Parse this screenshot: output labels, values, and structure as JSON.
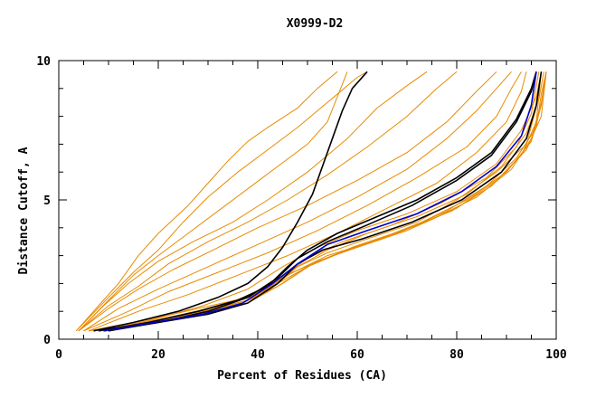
{
  "chart_data": {
    "type": "line",
    "title": "X0999-D2",
    "xlabel": "Percent of Residues (CA)",
    "ylabel": "Distance Cutoff, A",
    "xlim": [
      0,
      100
    ],
    "ylim": [
      0,
      10
    ],
    "xticks": [
      0,
      20,
      40,
      60,
      80,
      100
    ],
    "yticks": [
      0,
      5,
      10
    ],
    "grid": false,
    "colors": {
      "orange": "#e88a00",
      "black": "#000000",
      "blue": "#0000cc"
    },
    "series": [
      {
        "color": "orange",
        "points": [
          [
            3.5,
            0.3
          ],
          [
            8,
            1.2
          ],
          [
            12,
            2.0
          ],
          [
            16,
            3.0
          ],
          [
            20,
            3.8
          ],
          [
            26,
            4.8
          ],
          [
            30,
            5.6
          ],
          [
            34,
            6.4
          ],
          [
            38,
            7.1
          ],
          [
            42,
            7.6
          ],
          [
            48,
            8.3
          ],
          [
            52,
            9.0
          ],
          [
            56,
            9.6
          ]
        ]
      },
      {
        "color": "orange",
        "points": [
          [
            3.5,
            0.3
          ],
          [
            10,
            1.5
          ],
          [
            15,
            2.4
          ],
          [
            20,
            3.2
          ],
          [
            25,
            4.2
          ],
          [
            30,
            5.1
          ],
          [
            36,
            6.0
          ],
          [
            42,
            6.8
          ],
          [
            48,
            7.6
          ],
          [
            54,
            8.5
          ],
          [
            60,
            9.4
          ],
          [
            62,
            9.6
          ]
        ]
      },
      {
        "color": "orange",
        "points": [
          [
            4,
            0.3
          ],
          [
            10,
            1.4
          ],
          [
            15,
            2.3
          ],
          [
            20,
            3.0
          ],
          [
            26,
            3.8
          ],
          [
            32,
            4.6
          ],
          [
            38,
            5.4
          ],
          [
            44,
            6.2
          ],
          [
            50,
            7.0
          ],
          [
            54,
            7.8
          ],
          [
            56,
            8.7
          ],
          [
            58,
            9.6
          ]
        ]
      },
      {
        "color": "orange",
        "points": [
          [
            4,
            0.3
          ],
          [
            9,
            1.2
          ],
          [
            14,
            2.0
          ],
          [
            20,
            2.8
          ],
          [
            27,
            3.5
          ],
          [
            35,
            4.2
          ],
          [
            42,
            5.0
          ],
          [
            50,
            6.0
          ],
          [
            58,
            7.2
          ],
          [
            64,
            8.3
          ],
          [
            70,
            9.1
          ],
          [
            74,
            9.6
          ]
        ]
      },
      {
        "color": "orange",
        "points": [
          [
            4,
            0.3
          ],
          [
            10,
            1.2
          ],
          [
            16,
            1.9
          ],
          [
            22,
            2.7
          ],
          [
            30,
            3.5
          ],
          [
            38,
            4.2
          ],
          [
            46,
            5.0
          ],
          [
            54,
            5.9
          ],
          [
            62,
            6.9
          ],
          [
            70,
            8.0
          ],
          [
            76,
            9.0
          ],
          [
            80,
            9.6
          ]
        ]
      },
      {
        "color": "orange",
        "points": [
          [
            4,
            0.3
          ],
          [
            10,
            1.1
          ],
          [
            16,
            1.8
          ],
          [
            23,
            2.5
          ],
          [
            31,
            3.2
          ],
          [
            40,
            4.0
          ],
          [
            50,
            4.8
          ],
          [
            60,
            5.7
          ],
          [
            70,
            6.7
          ],
          [
            78,
            7.8
          ],
          [
            84,
            8.9
          ],
          [
            88,
            9.6
          ]
        ]
      },
      {
        "color": "orange",
        "points": [
          [
            5,
            0.3
          ],
          [
            12,
            1.1
          ],
          [
            20,
            1.8
          ],
          [
            30,
            2.6
          ],
          [
            40,
            3.4
          ],
          [
            50,
            4.2
          ],
          [
            60,
            5.1
          ],
          [
            70,
            6.1
          ],
          [
            78,
            7.2
          ],
          [
            84,
            8.2
          ],
          [
            88,
            9.0
          ],
          [
            91,
            9.6
          ]
        ]
      },
      {
        "color": "orange",
        "points": [
          [
            5,
            0.3
          ],
          [
            14,
            1.0
          ],
          [
            22,
            1.7
          ],
          [
            32,
            2.4
          ],
          [
            42,
            3.1
          ],
          [
            52,
            3.9
          ],
          [
            62,
            4.8
          ],
          [
            72,
            5.8
          ],
          [
            82,
            6.9
          ],
          [
            88,
            8.0
          ],
          [
            91,
            9.0
          ],
          [
            93,
            9.6
          ]
        ]
      },
      {
        "color": "orange",
        "points": [
          [
            6,
            0.3
          ],
          [
            16,
            1.0
          ],
          [
            26,
            1.6
          ],
          [
            36,
            2.3
          ],
          [
            46,
            3.0
          ],
          [
            56,
            3.8
          ],
          [
            66,
            4.7
          ],
          [
            76,
            5.6
          ],
          [
            84,
            6.7
          ],
          [
            90,
            7.8
          ],
          [
            93,
            8.9
          ],
          [
            94,
            9.6
          ]
        ]
      },
      {
        "color": "orange",
        "points": [
          [
            6,
            0.3
          ],
          [
            18,
            0.7
          ],
          [
            28,
            1.1
          ],
          [
            38,
            1.5
          ],
          [
            44,
            2.0
          ],
          [
            48,
            2.6
          ],
          [
            54,
            3.1
          ],
          [
            62,
            3.6
          ],
          [
            72,
            4.2
          ],
          [
            80,
            5.0
          ],
          [
            88,
            6.0
          ],
          [
            94,
            7.0
          ],
          [
            96,
            8.3
          ],
          [
            97,
            9.6
          ]
        ]
      },
      {
        "color": "orange",
        "points": [
          [
            6,
            0.3
          ],
          [
            18,
            0.6
          ],
          [
            28,
            0.9
          ],
          [
            37,
            1.3
          ],
          [
            44,
            1.9
          ],
          [
            50,
            2.6
          ],
          [
            58,
            3.2
          ],
          [
            68,
            3.8
          ],
          [
            78,
            4.6
          ],
          [
            86,
            5.5
          ],
          [
            92,
            6.5
          ],
          [
            96,
            7.6
          ],
          [
            97,
            8.8
          ],
          [
            98,
            9.6
          ]
        ]
      },
      {
        "color": "orange",
        "points": [
          [
            7,
            0.3
          ],
          [
            18,
            0.6
          ],
          [
            29,
            1.0
          ],
          [
            38,
            1.4
          ],
          [
            45,
            2.1
          ],
          [
            52,
            2.8
          ],
          [
            60,
            3.3
          ],
          [
            70,
            3.9
          ],
          [
            80,
            4.7
          ],
          [
            88,
            5.7
          ],
          [
            94,
            6.8
          ],
          [
            97,
            8.0
          ],
          [
            98,
            9.6
          ]
        ]
      },
      {
        "color": "orange",
        "points": [
          [
            8,
            0.3
          ],
          [
            20,
            0.7
          ],
          [
            30,
            1.1
          ],
          [
            39,
            1.6
          ],
          [
            46,
            2.3
          ],
          [
            54,
            3.0
          ],
          [
            63,
            3.5
          ],
          [
            73,
            4.2
          ],
          [
            82,
            5.0
          ],
          [
            90,
            6.0
          ],
          [
            95,
            7.1
          ],
          [
            97,
            8.4
          ],
          [
            98,
            9.6
          ]
        ]
      },
      {
        "color": "orange",
        "points": [
          [
            8,
            0.3
          ],
          [
            20,
            0.6
          ],
          [
            30,
            0.9
          ],
          [
            38,
            1.3
          ],
          [
            45,
            2.0
          ],
          [
            51,
            2.7
          ],
          [
            59,
            3.3
          ],
          [
            69,
            3.9
          ],
          [
            79,
            4.6
          ],
          [
            87,
            5.5
          ],
          [
            93,
            6.6
          ],
          [
            96,
            7.8
          ],
          [
            97,
            9.6
          ]
        ]
      },
      {
        "color": "orange",
        "points": [
          [
            9,
            0.3
          ],
          [
            21,
            0.7
          ],
          [
            31,
            1.1
          ],
          [
            40,
            1.6
          ],
          [
            47,
            2.4
          ],
          [
            55,
            3.0
          ],
          [
            65,
            3.6
          ],
          [
            75,
            4.3
          ],
          [
            84,
            5.1
          ],
          [
            91,
            6.1
          ],
          [
            95,
            7.2
          ],
          [
            97,
            8.5
          ],
          [
            98,
            9.6
          ]
        ]
      },
      {
        "color": "orange",
        "points": [
          [
            8,
            0.3
          ],
          [
            19,
            0.7
          ],
          [
            29,
            1.2
          ],
          [
            38,
            1.8
          ],
          [
            45,
            2.6
          ],
          [
            52,
            3.3
          ],
          [
            60,
            3.9
          ],
          [
            70,
            4.5
          ],
          [
            80,
            5.3
          ],
          [
            88,
            6.3
          ],
          [
            93,
            7.5
          ],
          [
            96,
            8.7
          ],
          [
            97,
            9.6
          ]
        ]
      },
      {
        "color": "orange",
        "points": [
          [
            9,
            0.3
          ],
          [
            20,
            0.6
          ],
          [
            30,
            1.0
          ],
          [
            38,
            1.4
          ],
          [
            44,
            2.1
          ],
          [
            50,
            2.9
          ],
          [
            57,
            3.5
          ],
          [
            67,
            4.1
          ],
          [
            77,
            4.9
          ],
          [
            86,
            5.8
          ],
          [
            92,
            6.9
          ],
          [
            95,
            8.1
          ],
          [
            96.5,
            9.6
          ]
        ]
      },
      {
        "color": "orange",
        "points": [
          [
            10,
            0.3
          ],
          [
            22,
            0.7
          ],
          [
            32,
            1.1
          ],
          [
            40,
            1.7
          ],
          [
            47,
            2.5
          ],
          [
            54,
            3.2
          ],
          [
            62,
            3.8
          ],
          [
            72,
            4.4
          ],
          [
            82,
            5.2
          ],
          [
            89,
            6.2
          ],
          [
            94,
            7.4
          ],
          [
            96.5,
            8.6
          ],
          [
            97.5,
            9.6
          ]
        ]
      },
      {
        "color": "black",
        "points": [
          [
            7,
            0.3
          ],
          [
            15,
            0.6
          ],
          [
            24,
            1.0
          ],
          [
            32,
            1.5
          ],
          [
            38,
            2.0
          ],
          [
            42,
            2.6
          ],
          [
            45,
            3.3
          ],
          [
            48,
            4.2
          ],
          [
            51,
            5.2
          ],
          [
            53,
            6.2
          ],
          [
            55,
            7.2
          ],
          [
            57,
            8.2
          ],
          [
            59,
            9.0
          ],
          [
            62,
            9.6
          ]
        ]
      },
      {
        "color": "black",
        "points": [
          [
            8,
            0.3
          ],
          [
            18,
            0.6
          ],
          [
            28,
            1.0
          ],
          [
            36,
            1.4
          ],
          [
            42,
            1.9
          ],
          [
            46,
            2.6
          ],
          [
            50,
            3.2
          ],
          [
            56,
            3.8
          ],
          [
            64,
            4.4
          ],
          [
            72,
            5.0
          ],
          [
            80,
            5.8
          ],
          [
            87,
            6.7
          ],
          [
            92,
            7.9
          ],
          [
            95,
            9.0
          ],
          [
            96,
            9.6
          ]
        ]
      },
      {
        "color": "black",
        "points": [
          [
            9,
            0.3
          ],
          [
            20,
            0.6
          ],
          [
            30,
            1.0
          ],
          [
            38,
            1.5
          ],
          [
            44,
            2.2
          ],
          [
            48,
            2.9
          ],
          [
            54,
            3.5
          ],
          [
            62,
            4.1
          ],
          [
            71,
            4.8
          ],
          [
            80,
            5.7
          ],
          [
            87,
            6.6
          ],
          [
            92,
            7.8
          ],
          [
            95,
            8.9
          ],
          [
            96,
            9.6
          ]
        ]
      },
      {
        "color": "black",
        "points": [
          [
            10,
            0.3
          ],
          [
            20,
            0.6
          ],
          [
            30,
            0.9
          ],
          [
            38,
            1.3
          ],
          [
            44,
            2.0
          ],
          [
            48,
            2.7
          ],
          [
            53,
            3.2
          ],
          [
            61,
            3.6
          ],
          [
            71,
            4.2
          ],
          [
            81,
            5.0
          ],
          [
            89,
            6.0
          ],
          [
            94,
            7.2
          ],
          [
            96,
            8.4
          ],
          [
            97,
            9.6
          ]
        ]
      },
      {
        "color": "blue",
        "points": [
          [
            9,
            0.3
          ],
          [
            19,
            0.6
          ],
          [
            29,
            0.9
          ],
          [
            37,
            1.3
          ],
          [
            43,
            2.0
          ],
          [
            48,
            2.7
          ],
          [
            54,
            3.4
          ],
          [
            62,
            3.9
          ],
          [
            72,
            4.5
          ],
          [
            81,
            5.3
          ],
          [
            88,
            6.2
          ],
          [
            93,
            7.3
          ],
          [
            95,
            8.4
          ],
          [
            96,
            9.6
          ]
        ]
      }
    ]
  }
}
